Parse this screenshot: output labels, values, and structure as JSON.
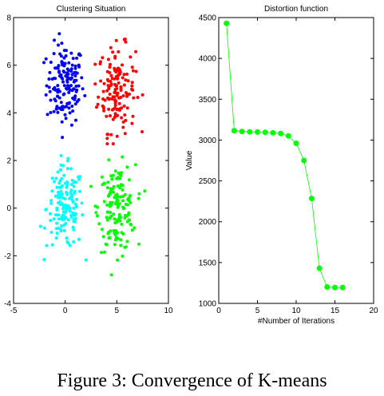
{
  "caption": "Figure 3: Convergence of K-means",
  "chart_data": [
    {
      "type": "scatter",
      "title": "Clustering Situation",
      "xlabel": "",
      "ylabel": "",
      "xlim": [
        -5,
        10
      ],
      "ylim": [
        -4,
        8
      ],
      "xticks": [
        -5,
        0,
        5,
        10
      ],
      "yticks": [
        -4,
        -2,
        0,
        2,
        4,
        6,
        8
      ],
      "grid": false,
      "clusters": [
        {
          "color": "#0000ff",
          "center": [
            0,
            5.2
          ],
          "spread": [
            0.9,
            0.85
          ],
          "count": 150,
          "x_range": [
            -2.6,
            2.2
          ],
          "y_range": [
            2.7,
            7.5
          ]
        },
        {
          "color": "#ff0000",
          "center": [
            5.0,
            5.0
          ],
          "spread": [
            0.9,
            0.9
          ],
          "count": 150,
          "x_range": [
            2.9,
            7.6
          ],
          "y_range": [
            2.7,
            7.3
          ]
        },
        {
          "color": "#00ffff",
          "center": [
            0,
            0
          ],
          "spread": [
            0.9,
            0.85
          ],
          "count": 150,
          "x_range": [
            -2.8,
            2.6
          ],
          "y_range": [
            -2.6,
            2.2
          ]
        },
        {
          "color": "#00ff00",
          "center": [
            5.0,
            0
          ],
          "spread": [
            0.9,
            0.9
          ],
          "count": 150,
          "x_range": [
            2.5,
            7.7
          ],
          "y_range": [
            -2.8,
            2.4
          ]
        }
      ]
    },
    {
      "type": "line",
      "title": "Distortion function",
      "xlabel": "#Number of Iterations",
      "ylabel": "Value",
      "xlim": [
        0,
        20
      ],
      "ylim": [
        1000,
        4500
      ],
      "xticks": [
        0,
        5,
        10,
        15,
        20
      ],
      "yticks": [
        1000,
        1500,
        2000,
        2500,
        3000,
        3500,
        4000,
        4500
      ],
      "grid": false,
      "color": "#00ff00",
      "x": [
        1,
        2,
        3,
        4,
        5,
        6,
        7,
        8,
        9,
        10,
        11,
        12,
        13,
        14,
        15,
        16
      ],
      "y": [
        4430,
        3115,
        3105,
        3100,
        3098,
        3095,
        3088,
        3080,
        3050,
        2960,
        2750,
        2285,
        1430,
        1200,
        1195,
        1195
      ]
    }
  ]
}
